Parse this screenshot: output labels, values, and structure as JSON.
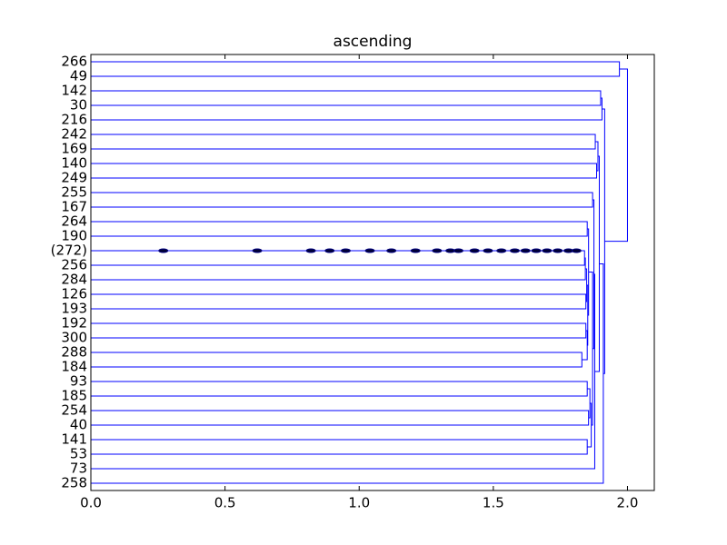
{
  "chart_data": {
    "type": "dendrogram",
    "title": "ascending",
    "leaves": [
      "266",
      "49",
      "142",
      "30",
      "216",
      "242",
      "169",
      "140",
      "249",
      "255",
      "167",
      "264",
      "190",
      "(272)",
      "256",
      "284",
      "126",
      "193",
      "192",
      "300",
      "288",
      "184",
      "93",
      "185",
      "254",
      "40",
      "141",
      "53",
      "73",
      "258"
    ],
    "links": [
      {
        "children": [
          13,
          14
        ],
        "height": 1.84
      },
      {
        "children": [
          30,
          15
        ],
        "height": 1.843
      },
      {
        "children": [
          16,
          17
        ],
        "height": 1.845
      },
      {
        "children": [
          31,
          32
        ],
        "height": 1.848
      },
      {
        "children": [
          18,
          19
        ],
        "height": 1.845
      },
      {
        "children": [
          20,
          21
        ],
        "height": 1.83
      },
      {
        "children": [
          34,
          35
        ],
        "height": 1.85
      },
      {
        "children": [
          33,
          36
        ],
        "height": 1.852
      },
      {
        "children": [
          11,
          12
        ],
        "height": 1.85
      },
      {
        "children": [
          38,
          37
        ],
        "height": 1.855
      },
      {
        "children": [
          22,
          23
        ],
        "height": 1.85
      },
      {
        "children": [
          24,
          25
        ],
        "height": 1.855
      },
      {
        "children": [
          40,
          41
        ],
        "height": 1.86
      },
      {
        "children": [
          26,
          27
        ],
        "height": 1.85
      },
      {
        "children": [
          42,
          43
        ],
        "height": 1.865
      },
      {
        "children": [
          39,
          44
        ],
        "height": 1.87
      },
      {
        "children": [
          9,
          10
        ],
        "height": 1.87
      },
      {
        "children": [
          46,
          45
        ],
        "height": 1.875
      },
      {
        "children": [
          47,
          28
        ],
        "height": 1.878
      },
      {
        "children": [
          5,
          6
        ],
        "height": 1.88
      },
      {
        "children": [
          7,
          8
        ],
        "height": 1.885
      },
      {
        "children": [
          49,
          50
        ],
        "height": 1.89
      },
      {
        "children": [
          51,
          48
        ],
        "height": 1.895
      },
      {
        "children": [
          52,
          29
        ],
        "height": 1.91
      },
      {
        "children": [
          2,
          3
        ],
        "height": 1.9
      },
      {
        "children": [
          54,
          4
        ],
        "height": 1.905
      },
      {
        "children": [
          55,
          53
        ],
        "height": 1.915
      },
      {
        "children": [
          0,
          1
        ],
        "height": 1.97
      },
      {
        "children": [
          57,
          56
        ],
        "height": 2.0
      }
    ],
    "contracted": {
      "leaf": 13,
      "heights": [
        0.27,
        0.62,
        0.82,
        0.89,
        0.95,
        1.04,
        1.12,
        1.21,
        1.29,
        1.34,
        1.37,
        1.43,
        1.48,
        1.53,
        1.58,
        1.62,
        1.66,
        1.7,
        1.74,
        1.78,
        1.81
      ]
    },
    "color": "#0000ff",
    "xlim": [
      0,
      2.1
    ],
    "xticks": [
      {
        "value": 0,
        "label": "0.0"
      },
      0.5,
      {
        "value": 1,
        "label": "1.0"
      },
      1.5,
      {
        "value": 2,
        "label": "2.0"
      }
    ]
  }
}
